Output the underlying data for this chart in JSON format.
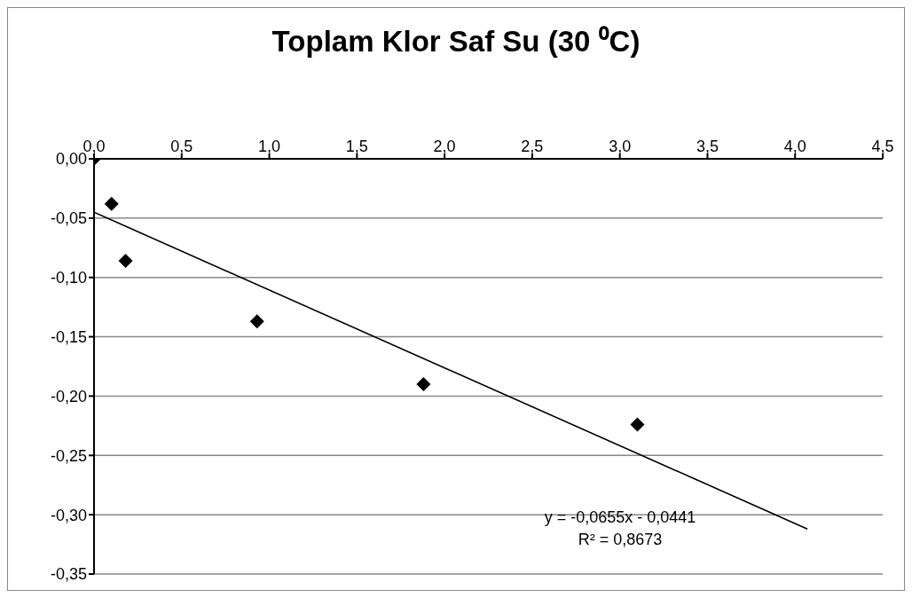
{
  "chart_data": {
    "type": "scatter",
    "title": "Toplam Klor Saf Su (30 ⁰C)",
    "series": [
      {
        "color": "#000000",
        "marker": "diamond",
        "x": [
          0,
          0.1,
          0.18,
          0.93,
          1.88,
          3.1
        ],
        "values": [
          0,
          -0.038,
          -0.086,
          -0.137,
          -0.19,
          -0.224
        ]
      },
      {
        "type": "line",
        "color": "#000000",
        "marker": "none",
        "x": [
          0,
          4.07
        ],
        "values": [
          -0.045,
          -0.312
        ]
      }
    ],
    "xlim": [
      0,
      4.5
    ],
    "xticks": [
      {
        "value": 0,
        "label": "0,0"
      },
      {
        "value": 0.5,
        "label": "0,5"
      },
      {
        "value": 1,
        "label": "1,0"
      },
      {
        "value": 1.5,
        "label": "1,5"
      },
      {
        "value": 2,
        "label": "2,0"
      },
      {
        "value": 2.5,
        "label": "2,5"
      },
      {
        "value": 3,
        "label": "3,0"
      },
      {
        "value": 3.5,
        "label": "3,5"
      },
      {
        "value": 4,
        "label": "4,0"
      },
      {
        "value": 4.5,
        "label": "4,5"
      }
    ],
    "ylim": [
      -0.35,
      0
    ],
    "yticks": [
      {
        "value": 0,
        "label": "0,00"
      },
      {
        "value": -0.05,
        "label": "-0,05"
      },
      {
        "value": -0.1,
        "label": "-0,10"
      },
      {
        "value": -0.15,
        "label": "-0,15"
      },
      {
        "value": -0.2,
        "label": "-0,20"
      },
      {
        "value": -0.25,
        "label": "-0,25"
      },
      {
        "value": -0.3,
        "label": "-0,30"
      },
      {
        "value": -0.35,
        "label": "-0,35"
      }
    ],
    "grid": "y",
    "annotations": [
      "y = -0,0655x - 0,0441",
      "R² = 0,8673"
    ]
  }
}
